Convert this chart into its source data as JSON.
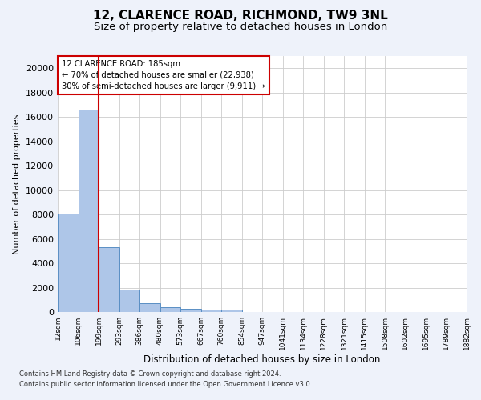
{
  "title1": "12, CLARENCE ROAD, RICHMOND, TW9 3NL",
  "title2": "Size of property relative to detached houses in London",
  "xlabel": "Distribution of detached houses by size in London",
  "ylabel": "Number of detached properties",
  "bar_values": [
    8100,
    16600,
    5300,
    1850,
    700,
    380,
    290,
    220,
    180,
    0,
    0,
    0,
    0,
    0,
    0,
    0,
    0,
    0,
    0,
    0
  ],
  "bar_labels": [
    "12sqm",
    "106sqm",
    "199sqm",
    "293sqm",
    "386sqm",
    "480sqm",
    "573sqm",
    "667sqm",
    "760sqm",
    "854sqm",
    "947sqm",
    "1041sqm",
    "1134sqm",
    "1228sqm",
    "1321sqm",
    "1415sqm",
    "1508sqm",
    "1602sqm",
    "1695sqm",
    "1789sqm",
    "1882sqm"
  ],
  "bar_color": "#aec6e8",
  "bar_edge_color": "#5a8fc4",
  "vline_color": "#cc0000",
  "annotation_text": "12 CLARENCE ROAD: 185sqm\n← 70% of detached houses are smaller (22,938)\n30% of semi-detached houses are larger (9,911) →",
  "annotation_box_color": "#cc0000",
  "ylim": [
    0,
    21000
  ],
  "yticks": [
    0,
    2000,
    4000,
    6000,
    8000,
    10000,
    12000,
    14000,
    16000,
    18000,
    20000
  ],
  "footer1": "Contains HM Land Registry data © Crown copyright and database right 2024.",
  "footer2": "Contains public sector information licensed under the Open Government Licence v3.0.",
  "bg_color": "#eef2fa",
  "plot_bg_color": "#ffffff",
  "title_fontsize": 11,
  "subtitle_fontsize": 9.5
}
